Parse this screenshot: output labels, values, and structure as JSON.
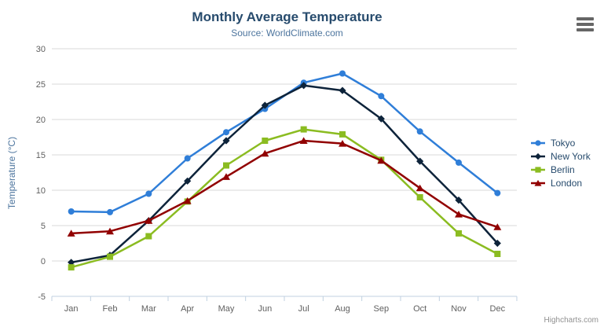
{
  "chart": {
    "title": "Monthly Average Temperature",
    "subtitle": "Source: WorldClimate.com",
    "credits": "Highcharts.com",
    "export_menu_icon": "hamburger-icon"
  },
  "chart_data": {
    "type": "line",
    "title": "Monthly Average Temperature",
    "subtitle": "Source: WorldClimate.com",
    "xlabel": "",
    "ylabel": "Temperature (°C)",
    "ylim": [
      -5,
      30
    ],
    "ytick_interval": 5,
    "grid": true,
    "legend_position": "right",
    "categories": [
      "Jan",
      "Feb",
      "Mar",
      "Apr",
      "May",
      "Jun",
      "Jul",
      "Aug",
      "Sep",
      "Oct",
      "Nov",
      "Dec"
    ],
    "series": [
      {
        "name": "Tokyo",
        "color": "#2F7ED8",
        "marker": "circle",
        "values": [
          7.0,
          6.9,
          9.5,
          14.5,
          18.2,
          21.5,
          25.2,
          26.5,
          23.3,
          18.3,
          13.9,
          9.6
        ]
      },
      {
        "name": "New York",
        "color": "#0D233A",
        "marker": "diamond",
        "values": [
          -0.2,
          0.8,
          5.7,
          11.3,
          17.0,
          22.0,
          24.8,
          24.1,
          20.1,
          14.1,
          8.6,
          2.5
        ]
      },
      {
        "name": "Berlin",
        "color": "#8BBC21",
        "marker": "square",
        "values": [
          -0.9,
          0.6,
          3.5,
          8.4,
          13.5,
          17.0,
          18.6,
          17.9,
          14.3,
          9.0,
          3.9,
          1.0
        ]
      },
      {
        "name": "London",
        "color": "#910000",
        "marker": "triangle",
        "values": [
          3.9,
          4.2,
          5.7,
          8.5,
          11.9,
          15.2,
          17.0,
          16.6,
          14.2,
          10.3,
          6.6,
          4.8
        ]
      }
    ],
    "colors": {
      "grid_line": "#D8D8D8",
      "axis_line": "#C0D0E0",
      "axis_label": "#606060",
      "title": "#274B6D",
      "subtitle": "#4D759E",
      "legend_text": "#274B6D",
      "credits_text": "#909090"
    }
  }
}
